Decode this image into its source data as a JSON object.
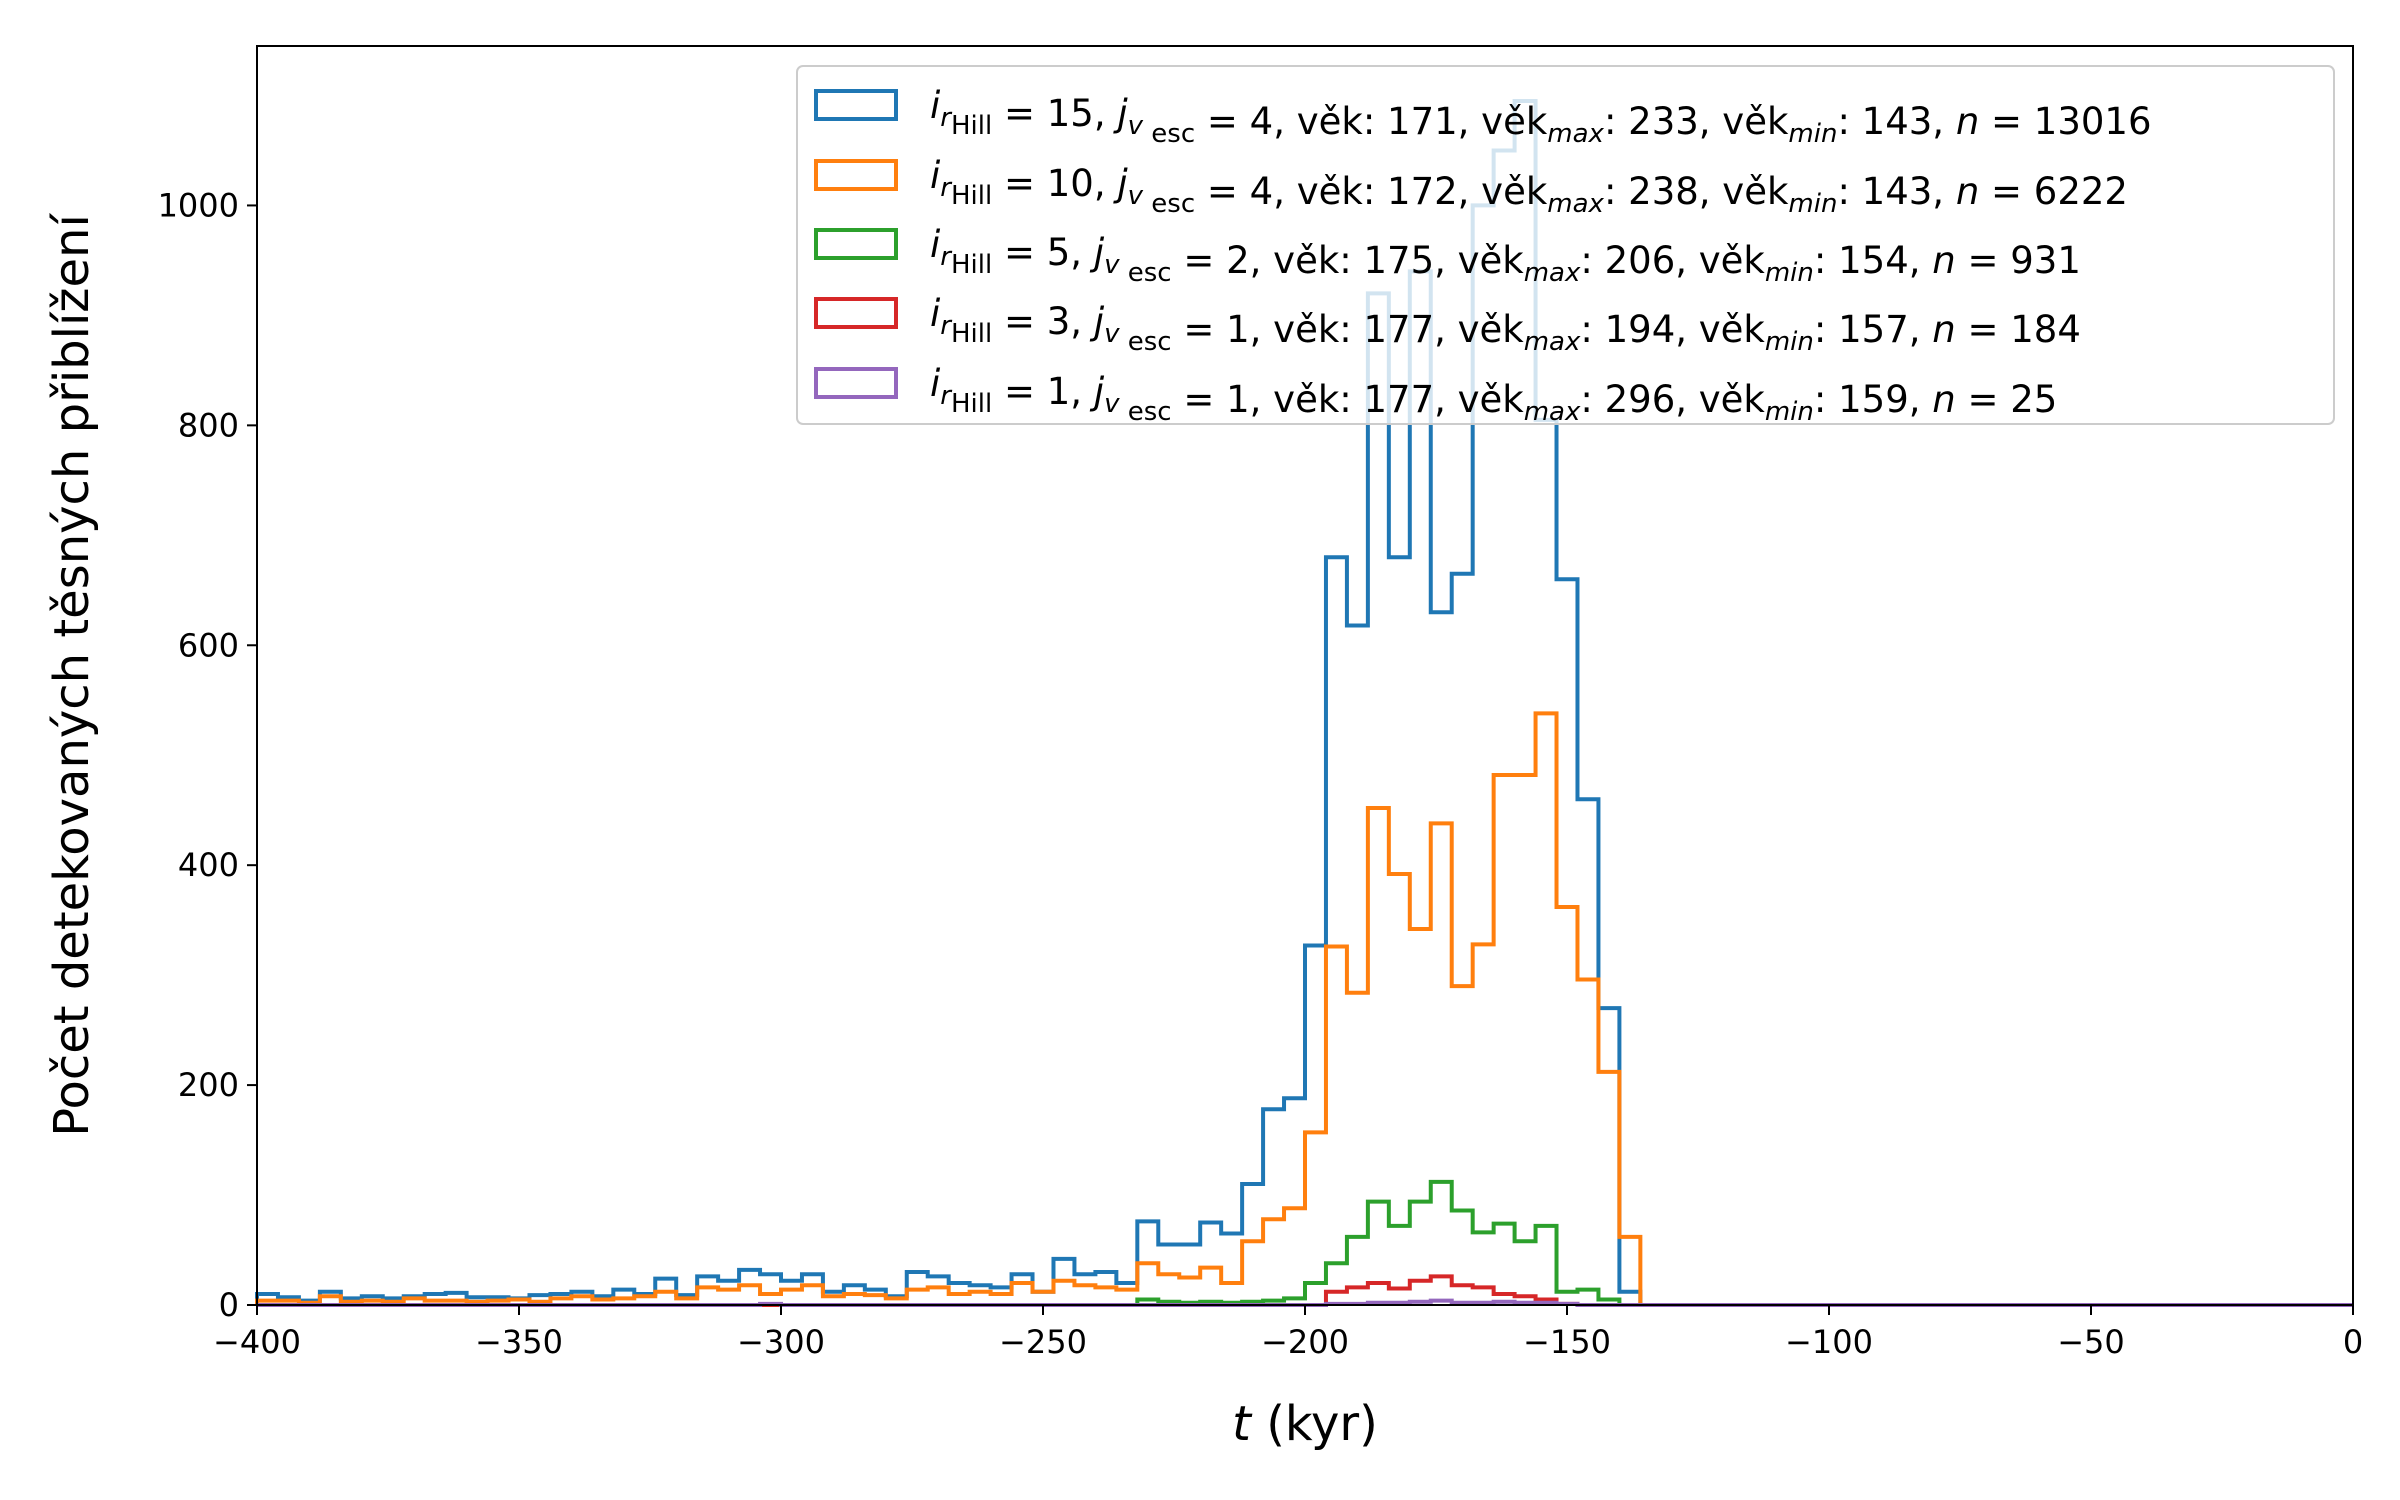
{
  "chart_data": {
    "type": "histogram",
    "xlabel": {
      "italic": "t",
      "rest": " (kyr)"
    },
    "ylabel": "Počet detekovaných těsných přiblížení",
    "xlim": [
      -400,
      0
    ],
    "ylim": [
      0,
      1145
    ],
    "xticks": [
      -400,
      -350,
      -300,
      -250,
      -200,
      -150,
      -100,
      -50,
      0
    ],
    "yticks": [
      0,
      200,
      400,
      600,
      800,
      1000
    ],
    "bin_edges_start": -400,
    "bin_width": 4,
    "series": [
      {
        "name": "i_rHill = 15, j_vesc = 4, věk: 171, věk_max: 233, věk_min: 143, n = 13016",
        "label": {
          "i": "15",
          "j": "4",
          "vek": "171",
          "vek_max": "233",
          "vek_min": "143",
          "n": "13016"
        },
        "color": "#1f77b4",
        "counts": [
          10,
          7,
          4,
          12,
          6,
          8,
          6,
          8,
          10,
          11,
          7,
          7,
          6,
          9,
          10,
          12,
          8,
          14,
          10,
          24,
          9,
          26,
          22,
          32,
          28,
          22,
          28,
          12,
          18,
          14,
          8,
          30,
          26,
          20,
          18,
          16,
          28,
          12,
          42,
          28,
          30,
          20,
          76,
          55,
          55,
          75,
          65,
          110,
          178,
          188,
          327,
          680,
          618,
          920,
          680,
          940,
          630,
          665,
          1000,
          1050,
          1095,
          805,
          660,
          460,
          270,
          12,
          0,
          0,
          0,
          0,
          0,
          0,
          0,
          0,
          0,
          0,
          0,
          0,
          0,
          0,
          0,
          0,
          0,
          0,
          0,
          0,
          0,
          0,
          0,
          0,
          0,
          0,
          0,
          0,
          0,
          0,
          0,
          0,
          0,
          0
        ]
      },
      {
        "name": "i_rHill = 10, j_vesc = 4, věk: 172, věk_max: 238, věk_min: 143, n = 6222",
        "label": {
          "i": "10",
          "j": "4",
          "vek": "172",
          "vek_max": "238",
          "vek_min": "143",
          "n": "6222"
        },
        "color": "#ff7f0e",
        "counts": [
          4,
          4,
          2,
          8,
          3,
          4,
          3,
          6,
          4,
          4,
          3,
          4,
          5,
          3,
          6,
          8,
          5,
          6,
          8,
          12,
          6,
          16,
          14,
          18,
          10,
          14,
          18,
          8,
          10,
          9,
          6,
          14,
          16,
          10,
          12,
          10,
          20,
          12,
          22,
          18,
          16,
          14,
          38,
          28,
          25,
          34,
          20,
          58,
          78,
          88,
          157,
          326,
          284,
          452,
          392,
          342,
          438,
          290,
          328,
          482,
          482,
          538,
          362,
          296,
          212,
          62,
          0,
          0,
          0,
          0,
          0,
          0,
          0,
          0,
          0,
          0,
          0,
          0,
          0,
          0,
          0,
          0,
          0,
          0,
          0,
          0,
          0,
          0,
          0,
          0,
          0,
          0,
          0,
          0,
          0,
          0,
          0,
          0,
          0,
          0
        ]
      },
      {
        "name": "i_rHill =  5, j_vesc = 2, věk: 175, věk_max: 206, věk_min: 154, n = 931",
        "label": {
          "i": " 5",
          "j": "2",
          "vek": "175",
          "vek_max": "206",
          "vek_min": "154",
          "n": "931"
        },
        "color": "#2ca02c",
        "counts": [
          0,
          0,
          0,
          0,
          0,
          0,
          0,
          0,
          0,
          0,
          0,
          0,
          0,
          0,
          0,
          0,
          0,
          0,
          0,
          0,
          0,
          0,
          0,
          0,
          0,
          0,
          0,
          0,
          0,
          0,
          0,
          0,
          0,
          0,
          0,
          0,
          0,
          0,
          0,
          0,
          0,
          0,
          5,
          3,
          2,
          3,
          2,
          3,
          4,
          6,
          20,
          38,
          62,
          94,
          72,
          94,
          112,
          86,
          66,
          74,
          58,
          72,
          12,
          14,
          5,
          0,
          0,
          0,
          0,
          0,
          0,
          0,
          0,
          0,
          0,
          0,
          0,
          0,
          0,
          0,
          0,
          0,
          0,
          0,
          0,
          0,
          0,
          0,
          0,
          0,
          0,
          0,
          0,
          0,
          0,
          0,
          0,
          0,
          0,
          0
        ]
      },
      {
        "name": "i_rHill =  3, j_vesc = 1, věk: 177, věk_max: 194, věk_min: 157, n = 184",
        "label": {
          "i": " 3",
          "j": "1",
          "vek": "177",
          "vek_max": "194",
          "vek_min": "157",
          "n": "184"
        },
        "color": "#d62728",
        "counts": [
          0,
          0,
          0,
          0,
          0,
          0,
          0,
          0,
          0,
          0,
          0,
          0,
          0,
          0,
          0,
          0,
          0,
          0,
          0,
          0,
          0,
          0,
          0,
          0,
          0,
          0,
          0,
          0,
          0,
          0,
          0,
          0,
          0,
          0,
          0,
          0,
          0,
          0,
          0,
          0,
          0,
          0,
          0,
          0,
          0,
          0,
          0,
          0,
          0,
          0,
          0,
          12,
          16,
          20,
          15,
          22,
          26,
          18,
          16,
          10,
          8,
          5,
          1,
          0,
          0,
          0,
          0,
          0,
          0,
          0,
          0,
          0,
          0,
          0,
          0,
          0,
          0,
          0,
          0,
          0,
          0,
          0,
          0,
          0,
          0,
          0,
          0,
          0,
          0,
          0,
          0,
          0,
          0,
          0,
          0,
          0,
          0,
          0,
          0,
          0
        ]
      },
      {
        "name": "i_rHill =  1, j_vesc = 1, věk: 177, věk_max: 296, věk_min: 159, n = 25",
        "label": {
          "i": " 1",
          "j": "1",
          "vek": "177",
          "vek_max": "296",
          "vek_min": "159",
          "n": "25"
        },
        "color": "#9467bd",
        "counts": [
          0,
          0,
          0,
          0,
          0,
          0,
          0,
          0,
          0,
          0,
          0,
          0,
          0,
          0,
          0,
          0,
          0,
          0,
          0,
          0,
          0,
          0,
          0,
          0,
          1,
          0,
          0,
          0,
          0,
          0,
          0,
          0,
          0,
          0,
          0,
          0,
          0,
          0,
          0,
          0,
          0,
          0,
          0,
          0,
          0,
          0,
          0,
          0,
          0,
          0,
          0,
          1,
          1,
          2,
          2,
          3,
          4,
          2,
          2,
          3,
          2,
          2,
          1,
          0,
          0,
          0,
          0,
          0,
          0,
          0,
          0,
          0,
          0,
          0,
          0,
          0,
          0,
          0,
          0,
          0,
          0,
          0,
          0,
          0,
          0,
          0,
          0,
          0,
          0,
          0,
          0,
          0,
          0,
          0,
          0,
          0,
          0,
          0,
          0,
          0
        ]
      }
    ],
    "legend_placement": "upper-right",
    "grid": false
  }
}
